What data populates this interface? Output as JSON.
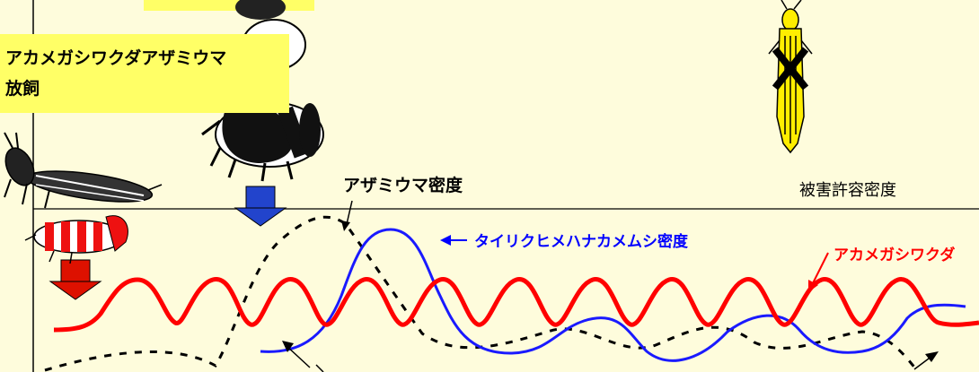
{
  "release_box": {
    "line1": "アカメガシワクダアザミウマ",
    "line2": "放飼"
  },
  "labels": {
    "thrips_density": "アザミウマ密度",
    "damage_threshold": "被害許容密度",
    "orius_density": "タイリクヒメハナカメムシ密度",
    "haplo_density": "アカメガシワクダ"
  },
  "colors": {
    "background": "#fefcdc",
    "release_box": "#ffff66",
    "orius_line": "#1a1aff",
    "haplo_line": "#ff0000",
    "thrips_line": "#000000",
    "orius_label": "#0000ff",
    "haplo_label": "#ff0000",
    "release_arrow_blue": "#2244cc",
    "release_arrow_red": "#dd1100"
  },
  "icons": [
    "predatory-thrips-icon",
    "predatory-thrips-larva-icon",
    "pirate-bug-icon",
    "pest-thrips-icon",
    "crossed-out-icon"
  ]
}
